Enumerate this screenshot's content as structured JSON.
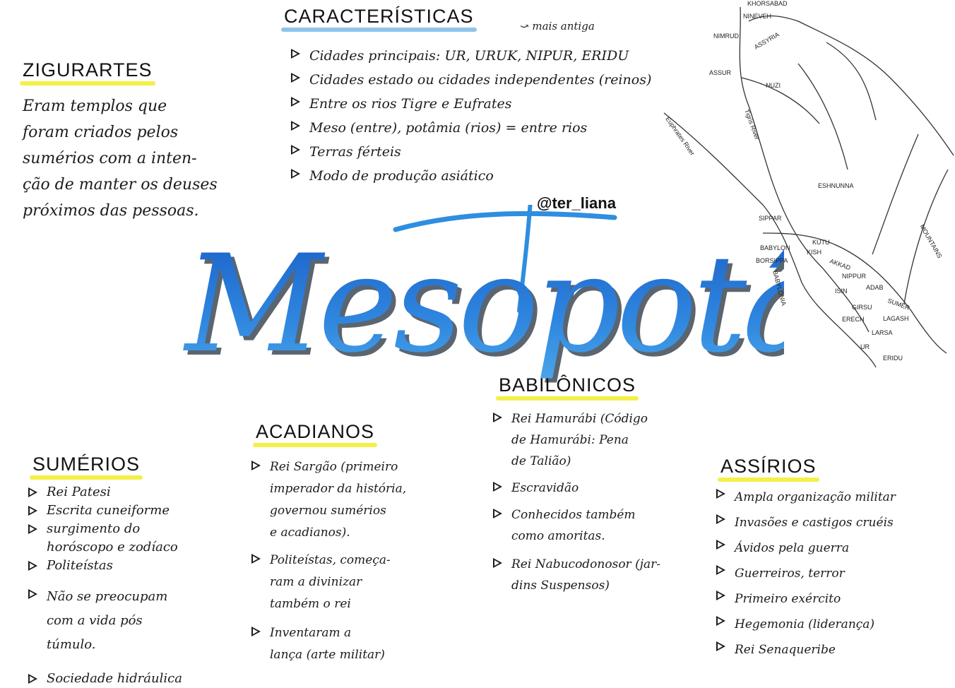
{
  "main_title": "Mesopotâmia",
  "handle": "@ter_liana",
  "caracteristicas": {
    "title": "CARACTERÍSTICAS",
    "annotation": "mais antiga",
    "items": [
      "Cidades principais: UR, URUK, NIPUR, ERIDU",
      "Cidades estado ou cidades independentes (reinos)",
      "Entre os rios Tigre e Eufrates",
      "Meso (entre), potâmia (rios) = entre rios",
      "Terras férteis",
      "Modo de produção asiático"
    ]
  },
  "zigurartes": {
    "title": "ZIGURARTES",
    "lines": [
      "Eram templos que",
      "foram criados pelos",
      "sumérios com a inten-",
      "ção de manter os deuses",
      "próximos das pessoas."
    ]
  },
  "sumerios": {
    "title": "SUMÉRIOS",
    "items": [
      [
        "Rei Patesi"
      ],
      [
        "Escrita cuneiforme"
      ],
      [
        "surgimento do",
        "horóscopo e zodíaco"
      ],
      [
        "Politeístas"
      ],
      [
        "Não se preocupam",
        "com a vida pós",
        "túmulo."
      ],
      [
        "Sociedade hidráulica"
      ]
    ]
  },
  "acadianos": {
    "title": "ACADIANOS",
    "items": [
      [
        "Rei Sargão (primeiro",
        "imperador da história,",
        "governou sumérios",
        "e acadianos)."
      ],
      [
        "Politeístas, começa-",
        "ram a divinizar",
        "também o rei"
      ],
      [
        "Inventaram a",
        "lança (arte militar)"
      ]
    ]
  },
  "babilonicos": {
    "title": "BABILÔNICOS",
    "items": [
      [
        "Rei Hamurábi (Código",
        "de Hamurábi: Pena",
        "de Talião)"
      ],
      [
        "Escravidão"
      ],
      [
        "Conhecidos também",
        "como amoritas."
      ],
      [
        "Rei Nabucodonosor (jar-",
        "dins Suspensos)"
      ]
    ]
  },
  "assirios": {
    "title": "ASSÍRIOS",
    "items": [
      "Ampla organização militar",
      "Invasões e castigos cruéis",
      "Ávidos pela guerra",
      "Guerreiros, terror",
      "Primeiro exército",
      "Hegemonia (liderança)",
      "Rei Senaqueribe"
    ]
  },
  "map": {
    "cities": [
      "KHORSABAD",
      "NINEVEH",
      "NIMRUD",
      "ASSUR",
      "NUZI",
      "ESHNUNNA",
      "SIPPAR",
      "KUTU",
      "BABYLON",
      "KISH",
      "BORSIPPA",
      "NIPPUR",
      "ISIN",
      "ADAB",
      "GIRSU",
      "LAGASH",
      "ERECH",
      "LARSA",
      "UR",
      "ERIDU"
    ],
    "regions": [
      "ASSYRIA",
      "AKKAD",
      "SUMER",
      "BABYLONIA",
      "MOUNTAINS"
    ],
    "rivers": [
      "Euphrates River",
      "Tigris River"
    ]
  }
}
